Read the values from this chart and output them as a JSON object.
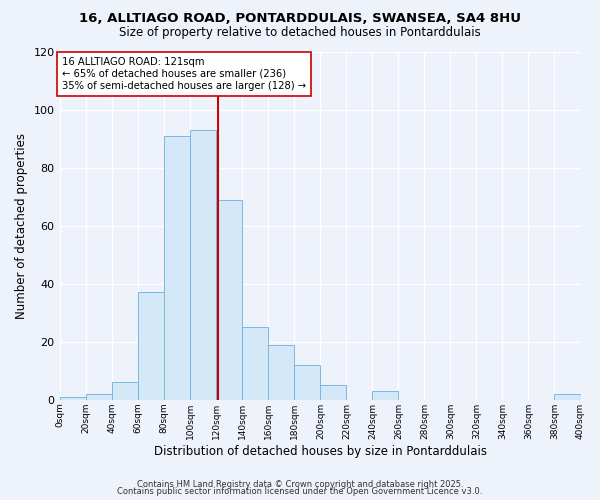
{
  "title": "16, ALLTIAGO ROAD, PONTARDDULAIS, SWANSEA, SA4 8HU",
  "subtitle": "Size of property relative to detached houses in Pontarddulais",
  "xlabel": "Distribution of detached houses by size in Pontarddulais",
  "ylabel": "Number of detached properties",
  "bar_color": "#d4e8f8",
  "bar_edge_color": "#7ab8e0",
  "background_color": "#eef2fb",
  "grid_color": "#ffffff",
  "bin_edges": [
    0,
    20,
    40,
    60,
    80,
    100,
    120,
    140,
    160,
    180,
    200,
    220,
    240,
    260,
    280,
    300,
    320,
    340,
    360,
    380,
    400
  ],
  "counts": [
    1,
    2,
    6,
    37,
    91,
    93,
    69,
    25,
    19,
    12,
    5,
    0,
    3,
    0,
    0,
    0,
    0,
    0,
    0,
    2
  ],
  "tick_labels": [
    "0sqm",
    "20sqm",
    "40sqm",
    "60sqm",
    "80sqm",
    "100sqm",
    "120sqm",
    "140sqm",
    "160sqm",
    "180sqm",
    "200sqm",
    "220sqm",
    "240sqm",
    "260sqm",
    "280sqm",
    "300sqm",
    "320sqm",
    "340sqm",
    "360sqm",
    "380sqm",
    "400sqm"
  ],
  "property_size": 121,
  "vline_color": "#cc0000",
  "annotation_title": "16 ALLTIAGO ROAD: 121sqm",
  "annotation_line1": "← 65% of detached houses are smaller (236)",
  "annotation_line2": "35% of semi-detached houses are larger (128) →",
  "annotation_box_color": "#ffffff",
  "annotation_box_edge": "#cc0000",
  "footer1": "Contains HM Land Registry data © Crown copyright and database right 2025.",
  "footer2": "Contains public sector information licensed under the Open Government Licence v3.0.",
  "ylim": [
    0,
    120
  ],
  "yticks": [
    0,
    20,
    40,
    60,
    80,
    100,
    120
  ]
}
